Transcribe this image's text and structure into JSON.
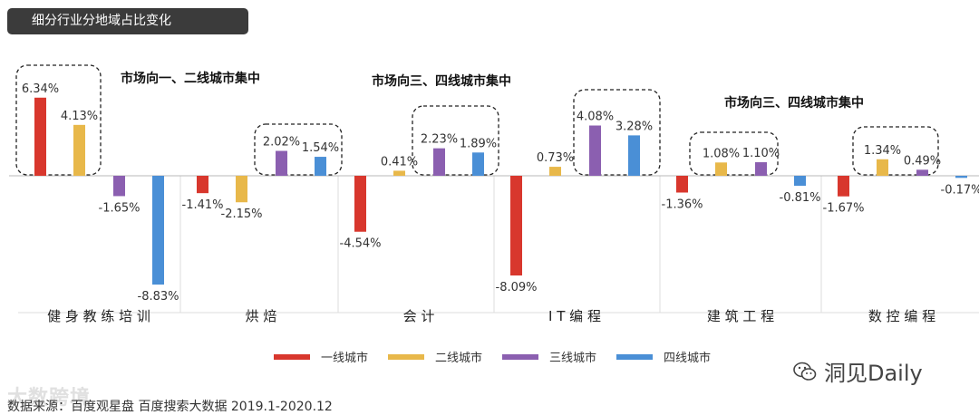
{
  "header": {
    "title": "细分行业分地域占比变化"
  },
  "annotations": [
    {
      "text": "市场向一、二线城市集中"
    },
    {
      "text": "市场向三、四线城市集中"
    },
    {
      "text": "市场向三、四线城市集中"
    }
  ],
  "footer": {
    "source": "数据来源：百度观星盘 百度搜索大数据 2019.1-2020.12"
  },
  "watermarks": {
    "left": "大数跨境",
    "right": "洞见Daily"
  },
  "colors": {
    "series": [
      "#d8372d",
      "#e8b84a",
      "#8b5fb0",
      "#4a8fd6"
    ],
    "title_bg": "#3b3b3b"
  },
  "chart_data": {
    "type": "bar",
    "categories": [
      "健身教练培训",
      "烘焙",
      "会计",
      "IT编程",
      "建筑工程",
      "数控编程"
    ],
    "category_display": [
      "健 身 教 练 培 训",
      "烘 焙",
      "会 计",
      "I T 编 程",
      "建 筑 工 程",
      "数 控 编 程"
    ],
    "series": [
      {
        "name": "一线城市",
        "values": [
          6.34,
          -1.41,
          -4.54,
          -8.09,
          -1.36,
          -1.67
        ],
        "labels": [
          "6.34%",
          "-1.41%",
          "-4.54%",
          "-8.09%",
          "-1.36%",
          "-1.67%"
        ]
      },
      {
        "name": "二线城市",
        "values": [
          4.13,
          -2.15,
          0.41,
          0.73,
          1.08,
          1.34
        ],
        "labels": [
          "4.13%",
          "-2.15%",
          "0.41%",
          "0.73%",
          "1.08%",
          "1.34%"
        ]
      },
      {
        "name": "三线城市",
        "values": [
          -1.65,
          2.02,
          2.23,
          4.08,
          1.1,
          0.49
        ],
        "labels": [
          "-1.65%",
          "2.02%",
          "2.23%",
          "4.08%",
          "1.10%",
          "0.49%"
        ]
      },
      {
        "name": "四线城市",
        "values": [
          -8.83,
          1.54,
          1.89,
          3.28,
          -0.81,
          -0.17
        ],
        "labels": [
          "-8.83%",
          "1.54%",
          "1.89%",
          "3.28%",
          "-0.81%",
          "-0.17%"
        ]
      }
    ],
    "ylim": [
      -9,
      7.5
    ],
    "units": "%",
    "grid": false,
    "legend_position": "bottom"
  }
}
